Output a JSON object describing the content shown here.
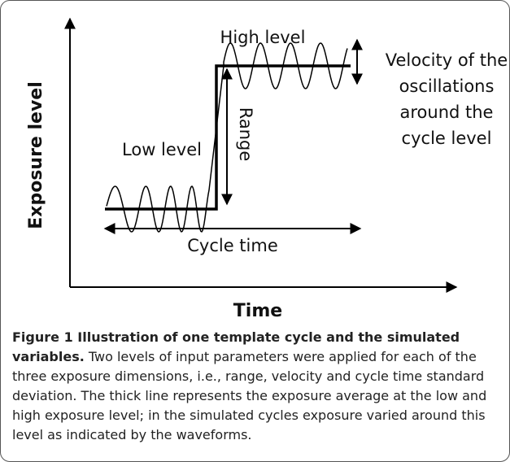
{
  "diagram": {
    "labels": {
      "high": "High level",
      "low": "Low level",
      "range": "Range",
      "cycle_time": "Cycle time",
      "y_axis": "Exposure level",
      "x_axis": "Time",
      "velocity": [
        "Velocity of the",
        "oscillations",
        "around the",
        "cycle level"
      ]
    }
  },
  "caption": {
    "title": "Figure 1 Illustration of one template cycle and the simulated variables.",
    "text": "Two levels of input parameters were applied for each of the three exposure dimensions, i.e., range, velocity and cycle time standard deviation. The thick line represents the exposure average at the low and high exposure level; in the simulated cycles exposure varied around this level as indicated by the waveforms."
  }
}
